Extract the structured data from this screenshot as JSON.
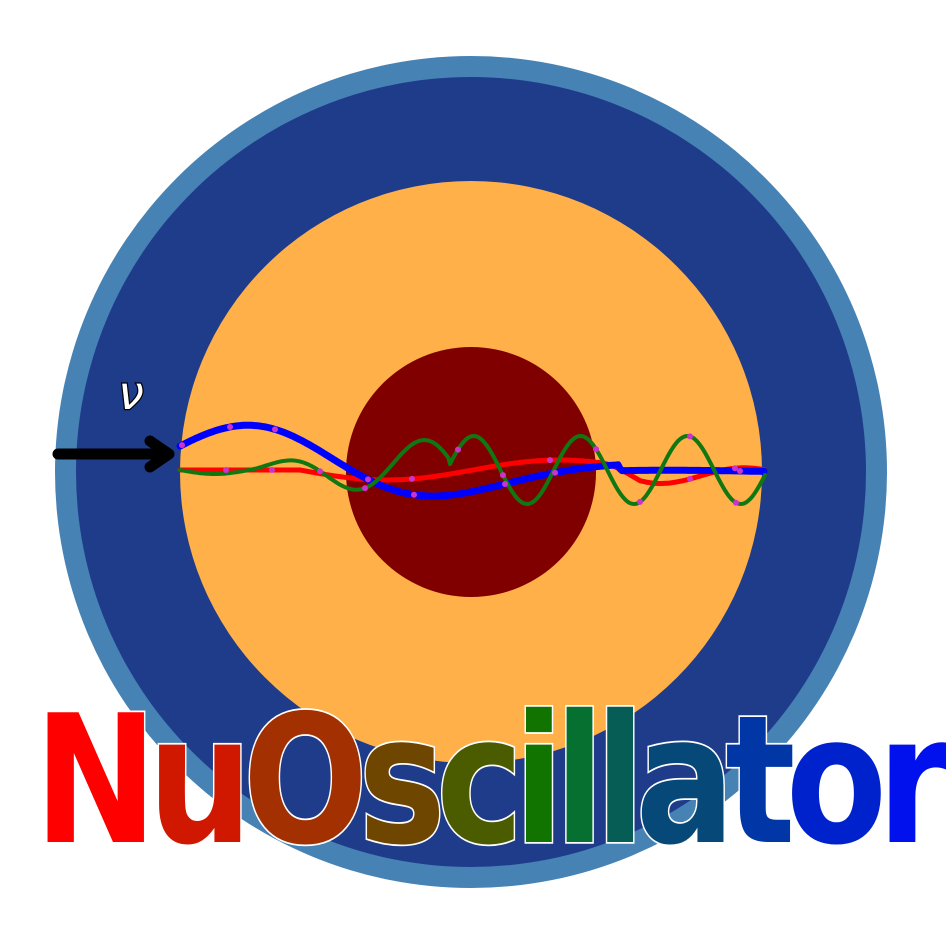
{
  "logo": {
    "symbol": "ν",
    "title_letters": [
      "N",
      "u",
      "O",
      "s",
      "c",
      "i",
      "l",
      "l",
      "a",
      "t",
      "o",
      "r"
    ],
    "title_colors": [
      "#ff0000",
      "#d01800",
      "#a23000",
      "#6f4600",
      "#4a5b00",
      "#127400",
      "#067030",
      "#065d55",
      "#064878",
      "#0036a5",
      "#0022cc",
      "#0011ee"
    ],
    "colors": {
      "outer_ring": "#4682b4",
      "mantle": "#1f3c8b",
      "outer_core": "#ffb049",
      "inner_core": "#800000",
      "arrow": "#000000",
      "wave_blue": "#0000ff",
      "wave_red": "#ff0000",
      "wave_green": "#117711",
      "wave_markers": "#cc33cc"
    }
  }
}
